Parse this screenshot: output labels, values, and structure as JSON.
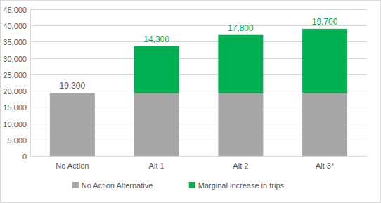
{
  "chart_data": {
    "type": "bar",
    "stacked": true,
    "categories": [
      "No Action",
      "Alt 1",
      "Alt 2",
      "Alt 3*"
    ],
    "series": [
      {
        "name": "No Action Alternative",
        "color": "#a6a6a6",
        "values": [
          19300,
          19300,
          19300,
          19300
        ],
        "value_labels": [
          "19,300",
          null,
          null,
          null
        ]
      },
      {
        "name": "Marginal increase in trips",
        "color": "#00b050",
        "values": [
          null,
          14300,
          17800,
          19700
        ],
        "value_labels": [
          null,
          "14,300",
          "17,800",
          "19,700"
        ]
      }
    ],
    "ylim": [
      0,
      45000
    ],
    "yticks": [
      0,
      {
        "value": 5000,
        "label": "5,000"
      },
      {
        "value": 10000,
        "label": "10,000"
      },
      {
        "value": 15000,
        "label": "15,000"
      },
      {
        "value": 20000,
        "label": "20,000"
      },
      {
        "value": 25000,
        "label": "25,000"
      },
      {
        "value": 30000,
        "label": "30,000"
      },
      {
        "value": 35000,
        "label": "35,000"
      },
      {
        "value": 40000,
        "label": "40,000"
      },
      {
        "value": 45000,
        "label": "45,000"
      }
    ],
    "grid": true,
    "data_labels": true,
    "legend": "bottom"
  }
}
